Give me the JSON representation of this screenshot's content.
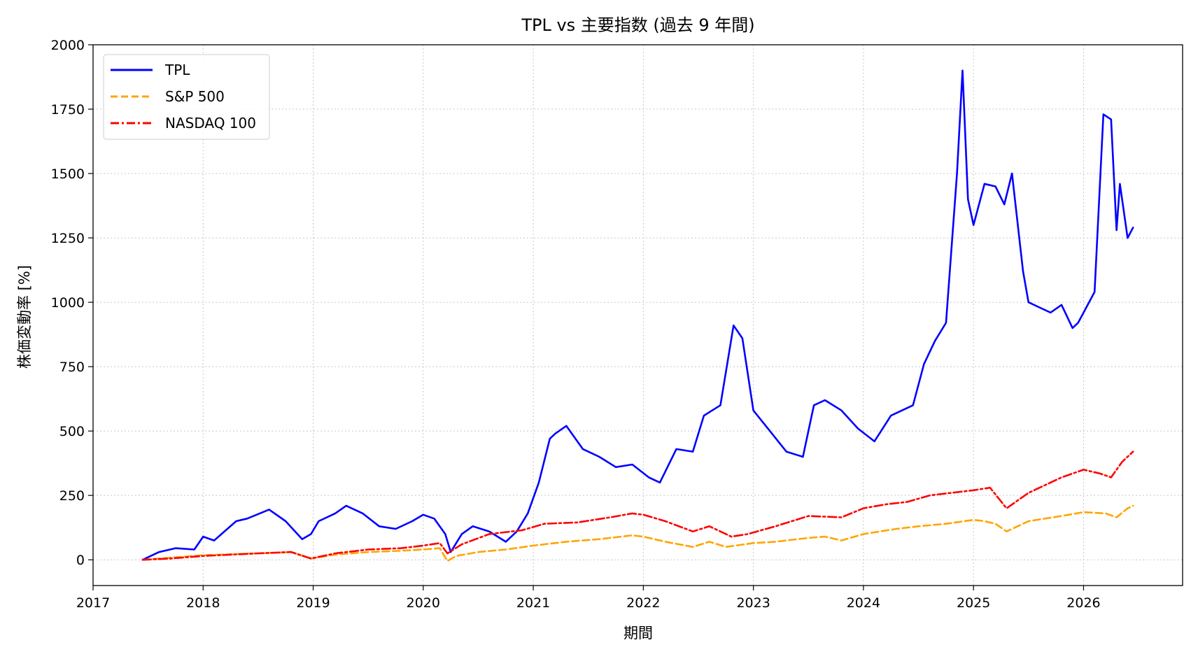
{
  "chart_data": {
    "type": "line",
    "title": "TPL vs 主要指数 (過去 9 年間)",
    "xlabel": "期間",
    "ylabel": "株価変動率 [%]",
    "xlim": [
      2017.0,
      2026.9
    ],
    "ylim": [
      -100,
      2000
    ],
    "xticks": [
      2017,
      2018,
      2019,
      2020,
      2021,
      2022,
      2023,
      2024,
      2025,
      2026
    ],
    "xtick_labels": [
      "2017",
      "2018",
      "2019",
      "2020",
      "2021",
      "2022",
      "2023",
      "2024",
      "2025",
      "2026"
    ],
    "yticks": [
      0,
      250,
      500,
      750,
      1000,
      1250,
      1500,
      1750,
      2000
    ],
    "ytick_labels": [
      "0",
      "250",
      "500",
      "750",
      "1000",
      "1250",
      "1500",
      "1750",
      "2000"
    ],
    "grid": true,
    "legend_position": "top-left",
    "series": [
      {
        "name": "TPL",
        "color": "#0000ff",
        "style": "solid",
        "x": [
          2017.45,
          2017.6,
          2017.75,
          2017.92,
          2018.0,
          2018.1,
          2018.3,
          2018.4,
          2018.6,
          2018.75,
          2018.9,
          2018.98,
          2019.05,
          2019.2,
          2019.3,
          2019.45,
          2019.6,
          2019.75,
          2019.9,
          2020.0,
          2020.1,
          2020.2,
          2020.25,
          2020.35,
          2020.45,
          2020.6,
          2020.75,
          2020.85,
          2020.95,
          2021.05,
          2021.15,
          2021.2,
          2021.3,
          2021.45,
          2021.6,
          2021.75,
          2021.9,
          2022.05,
          2022.15,
          2022.3,
          2022.45,
          2022.55,
          2022.7,
          2022.82,
          2022.9,
          2023.0,
          2023.15,
          2023.3,
          2023.45,
          2023.55,
          2023.65,
          2023.8,
          2023.95,
          2024.1,
          2024.25,
          2024.45,
          2024.55,
          2024.65,
          2024.75,
          2024.85,
          2024.9,
          2024.95,
          2025.0,
          2025.1,
          2025.2,
          2025.28,
          2025.35,
          2025.45,
          2025.5,
          2025.6,
          2025.7,
          2025.8,
          2025.9,
          2025.95,
          2026.0,
          2026.1,
          2026.18,
          2026.25,
          2026.3,
          2026.33,
          2026.4,
          2026.45
        ],
        "y": [
          0,
          30,
          45,
          40,
          90,
          75,
          150,
          160,
          195,
          150,
          80,
          100,
          150,
          180,
          210,
          180,
          130,
          120,
          150,
          175,
          160,
          100,
          30,
          100,
          130,
          110,
          70,
          110,
          180,
          300,
          470,
          490,
          520,
          430,
          400,
          360,
          370,
          320,
          300,
          430,
          420,
          560,
          600,
          910,
          860,
          580,
          500,
          420,
          400,
          600,
          620,
          580,
          510,
          460,
          560,
          600,
          760,
          850,
          920,
          1500,
          1900,
          1400,
          1300,
          1460,
          1450,
          1380,
          1500,
          1120,
          1000,
          980,
          960,
          990,
          900,
          920,
          960,
          1040,
          1730,
          1710,
          1280,
          1460,
          1250,
          1290
        ]
      },
      {
        "name": "S&P 500",
        "color": "#ffa500",
        "style": "dashed",
        "x": [
          2017.45,
          2017.7,
          2018.0,
          2018.5,
          2018.8,
          2018.98,
          2019.2,
          2019.5,
          2019.8,
          2020.0,
          2020.15,
          2020.22,
          2020.3,
          2020.5,
          2020.75,
          2021.0,
          2021.3,
          2021.6,
          2021.9,
          2022.0,
          2022.2,
          2022.45,
          2022.6,
          2022.75,
          2023.0,
          2023.2,
          2023.5,
          2023.65,
          2023.8,
          2024.0,
          2024.3,
          2024.5,
          2024.75,
          2025.0,
          2025.1,
          2025.2,
          2025.3,
          2025.5,
          2025.8,
          2026.0,
          2026.2,
          2026.3,
          2026.4,
          2026.45
        ],
        "y": [
          0,
          8,
          18,
          25,
          30,
          5,
          20,
          30,
          35,
          40,
          45,
          -5,
          15,
          30,
          40,
          55,
          70,
          80,
          95,
          90,
          70,
          50,
          70,
          50,
          65,
          70,
          85,
          90,
          75,
          100,
          120,
          130,
          140,
          155,
          150,
          140,
          110,
          150,
          170,
          185,
          180,
          165,
          200,
          210
        ]
      },
      {
        "name": "NASDAQ 100",
        "color": "#ff0000",
        "style": "dashdot",
        "x": [
          2017.45,
          2017.7,
          2018.0,
          2018.5,
          2018.8,
          2018.98,
          2019.2,
          2019.5,
          2019.8,
          2020.0,
          2020.15,
          2020.22,
          2020.35,
          2020.6,
          2020.9,
          2021.1,
          2021.4,
          2021.7,
          2021.9,
          2022.0,
          2022.2,
          2022.45,
          2022.6,
          2022.8,
          2022.95,
          2023.2,
          2023.5,
          2023.8,
          2024.0,
          2024.2,
          2024.4,
          2024.6,
          2024.9,
          2025.0,
          2025.15,
          2025.3,
          2025.5,
          2025.8,
          2026.0,
          2026.15,
          2026.25,
          2026.35,
          2026.45
        ],
        "y": [
          0,
          5,
          15,
          25,
          30,
          5,
          25,
          40,
          45,
          55,
          65,
          25,
          60,
          100,
          115,
          140,
          145,
          165,
          180,
          175,
          150,
          110,
          130,
          90,
          100,
          130,
          170,
          165,
          200,
          215,
          225,
          250,
          265,
          270,
          280,
          200,
          260,
          320,
          350,
          335,
          320,
          380,
          420
        ]
      }
    ]
  }
}
